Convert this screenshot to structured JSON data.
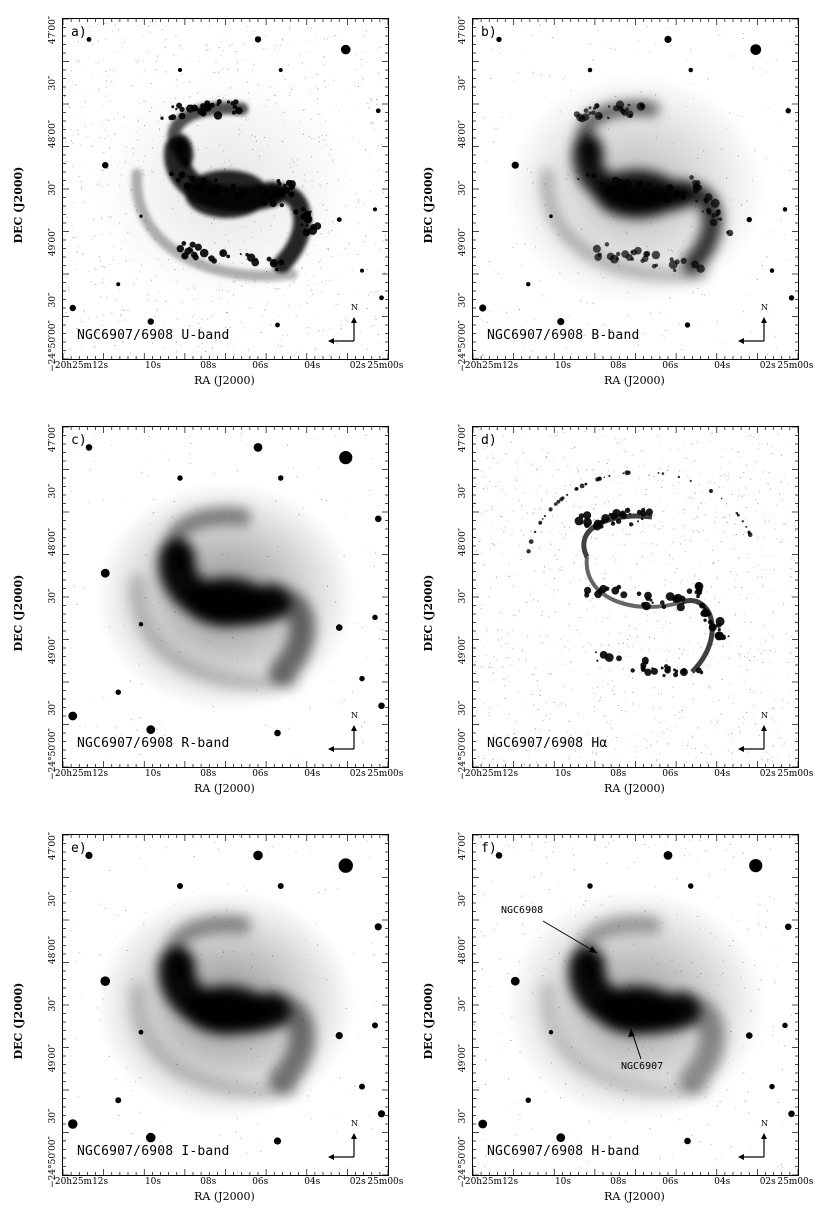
{
  "figure": {
    "panels": [
      {
        "id": "a",
        "label": "a)",
        "band_label": "NGC6907/6908 U-band",
        "style": "u"
      },
      {
        "id": "b",
        "label": "b)",
        "band_label": "NGC6907/6908 B-band",
        "style": "b"
      },
      {
        "id": "c",
        "label": "c)",
        "band_label": "NGC6907/6908 R-band",
        "style": "r"
      },
      {
        "id": "d",
        "label": "d)",
        "band_label": "NGC6907/6908 Hα",
        "style": "ha"
      },
      {
        "id": "e",
        "label": "e)",
        "band_label": "NGC6907/6908 I-band",
        "style": "i"
      },
      {
        "id": "f",
        "label": "f)",
        "band_label": "NGC6907/6908 H-band",
        "style": "h"
      }
    ],
    "compass_label": "N",
    "axes": {
      "xlabel": "RA (J2000)",
      "ylabel": "DEC (J2000)",
      "ylabel_alt": "DEC (J2000)",
      "xticks": [
        "20h25m12s",
        "10s",
        "08s",
        "06s",
        "04s",
        "02s",
        "25m00s"
      ],
      "yticks": [
        "−24°50′00″",
        "30″",
        "49′00″",
        "30″",
        "48′00″",
        "30″",
        "47′00″"
      ]
    },
    "annotations": {
      "ngc6908": "NGC6908",
      "ngc6907": "NGC6907"
    }
  }
}
